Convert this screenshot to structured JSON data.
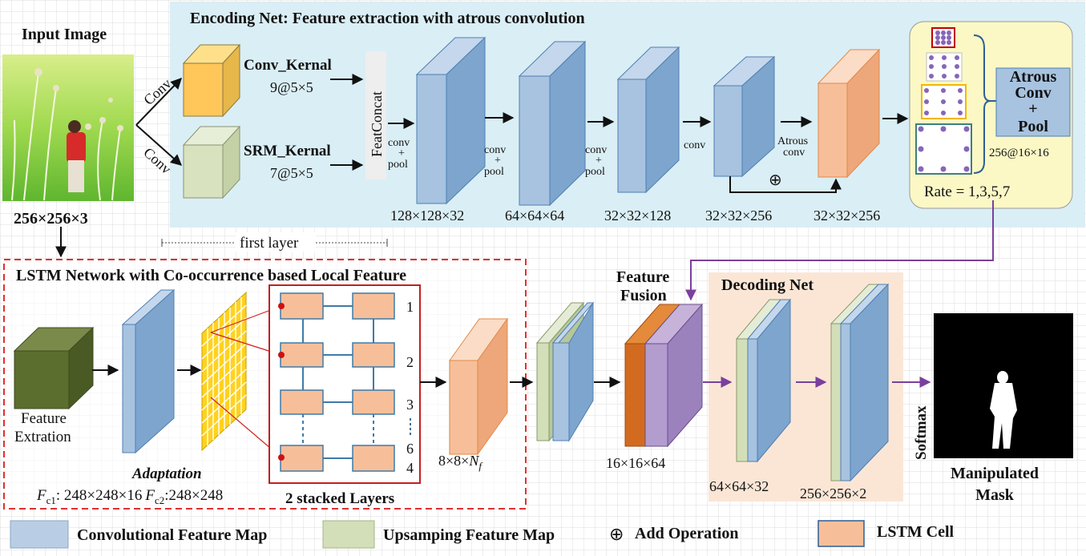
{
  "input": {
    "title": "Input Image",
    "size": "256×256×3"
  },
  "encoding": {
    "title": "Encoding Net: Feature extraction with atrous convolution",
    "conv_label": "Conv",
    "conv_kernel_name": "Conv_Kernal",
    "conv_kernel_size": "9@5×5",
    "srm_kernel_name": "SRM_Kernal",
    "srm_kernel_size": "7@5×5",
    "featconcat": "FeatConcat",
    "conv_word": "conv",
    "plus": "+",
    "pool_word": "pool",
    "atrous_word": "Atrous",
    "add_symbol": "⊕",
    "dims": [
      "128×128×32",
      "64×64×64",
      "32×32×128",
      "32×32×256",
      "32×32×256"
    ]
  },
  "atrous": {
    "line1": "Atrous",
    "line2": "Conv",
    "line3": "+",
    "line4": "Pool",
    "size": "256@16×16",
    "rate": "Rate = 1,3,5,7"
  },
  "first_layer": "first layer",
  "lstm": {
    "title": "LSTM Network with Co-occurrence based Local Feature",
    "feature_line1": "Feature",
    "feature_line2": "Extration",
    "adaptation": "Adaptation",
    "fc1_symbol": "F",
    "fc1_sub": "c1",
    "fc1_dims": ": 248×248×16",
    "fc2_symbol": "F",
    "fc2_sub": "c2",
    "fc2_dims": ":248×248",
    "stacked": "2 stacked Layers",
    "rows": [
      "1",
      "2",
      "3",
      "6",
      "4"
    ],
    "nf_prefix": "8×8×",
    "nf_symbol": "N",
    "nf_sub": "f"
  },
  "fusion": {
    "line1": "Feature",
    "line2": "Fusion",
    "dims": "16×16×64"
  },
  "decoding": {
    "title": "Decoding Net",
    "dims1": "64×64×32",
    "dims2": "256×256×2"
  },
  "softmax": "Softmax",
  "output": {
    "line1": "Manipulated",
    "line2": "Mask"
  },
  "legend": {
    "conv_map": "Convolutional Feature Map",
    "upsample_map": "Upsamping Feature Map",
    "add_symbol": "⊕",
    "add_op": "Add Operation",
    "lstm_cell": "LSTM Cell"
  },
  "colors": {
    "blue_face": "#a7c3e0",
    "blue_edge": "#4f7fb2",
    "green_face": "#d3dfb8",
    "orange_face": "#f6bf9a",
    "encoding_bg": "#daeef5",
    "decoding_bg": "#fbe6d6",
    "purple": "#7b3f9e",
    "dashed_red": "#e03030"
  }
}
